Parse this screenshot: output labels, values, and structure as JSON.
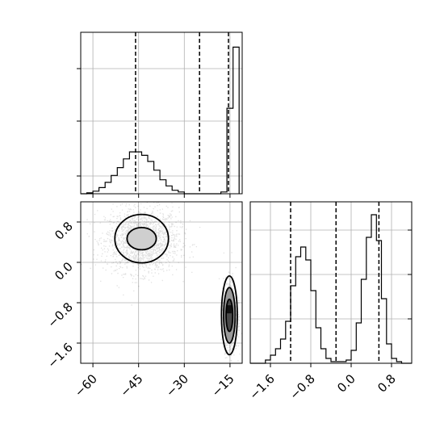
{
  "chart_data": {
    "type": "corner",
    "title": "",
    "grid": true,
    "x_param": {
      "ticks": [
        -60,
        -45,
        -30,
        -15
      ],
      "tick_labels": [
        "−60",
        "−45",
        "−30",
        "−15"
      ],
      "range": [
        -64,
        -11
      ],
      "quantiles": [
        -46,
        -25,
        -15.5
      ]
    },
    "y_param": {
      "ticks": [
        -1.6,
        -0.8,
        0.0,
        0.8
      ],
      "tick_labels": [
        "−1.6",
        "−0.8",
        "0.0",
        "0.8"
      ],
      "range": [
        -2.0,
        1.2
      ],
      "quantiles": [
        -1.2,
        -0.3,
        0.55
      ]
    },
    "hist_x": {
      "bin_edges": [
        -64,
        -62,
        -60,
        -58,
        -56,
        -54,
        -52,
        -50,
        -48,
        -46,
        -44,
        -42,
        -40,
        -38,
        -36,
        -34,
        -32,
        -30,
        -28,
        -26,
        -24,
        -22,
        -20,
        -18,
        -16,
        -14,
        -12
      ],
      "counts": [
        0,
        1,
        3,
        7,
        13,
        21,
        30,
        40,
        48,
        48,
        44,
        37,
        27,
        16,
        9,
        4,
        2,
        0,
        0,
        0,
        0,
        0,
        0,
        2,
        98,
        168,
        0
      ],
      "max": 185
    },
    "hist_y": {
      "bin_edges": [
        -2.0,
        -1.9,
        -1.8,
        -1.7,
        -1.6,
        -1.5,
        -1.4,
        -1.3,
        -1.2,
        -1.1,
        -1.0,
        -0.9,
        -0.8,
        -0.7,
        -0.6,
        -0.5,
        -0.4,
        -0.3,
        -0.2,
        -0.1,
        0.0,
        0.1,
        0.2,
        0.3,
        0.4,
        0.5,
        0.6,
        0.7,
        0.8,
        0.9,
        1.0,
        1.1,
        1.2
      ],
      "counts": [
        0,
        0,
        0,
        2,
        5,
        9,
        15,
        26,
        48,
        66,
        72,
        64,
        45,
        22,
        9,
        3,
        1,
        1,
        1,
        2,
        8,
        25,
        52,
        78,
        92,
        76,
        40,
        12,
        3,
        1,
        0,
        0
      ],
      "max": 100
    },
    "clusters": [
      {
        "cx": -44,
        "cy": 0.45,
        "sx": 6.0,
        "sy": 0.32,
        "n": 1700
      },
      {
        "cx": -15,
        "cy": -1.05,
        "sx": 1.1,
        "sy": 0.35,
        "n": 1000
      }
    ],
    "contours": [
      {
        "cx": -44,
        "cy": 0.47,
        "rx": 8.8,
        "ry": 0.48
      },
      {
        "cx": -44,
        "cy": 0.47,
        "rx": 4.8,
        "ry": 0.22
      },
      {
        "cx": -15.2,
        "cy": -1.05,
        "rx": 2.6,
        "ry": 0.78
      },
      {
        "cx": -15.2,
        "cy": -1.05,
        "rx": 1.9,
        "ry": 0.55
      },
      {
        "cx": -15.2,
        "cy": -1.05,
        "rx": 1.1,
        "ry": 0.32
      }
    ]
  }
}
